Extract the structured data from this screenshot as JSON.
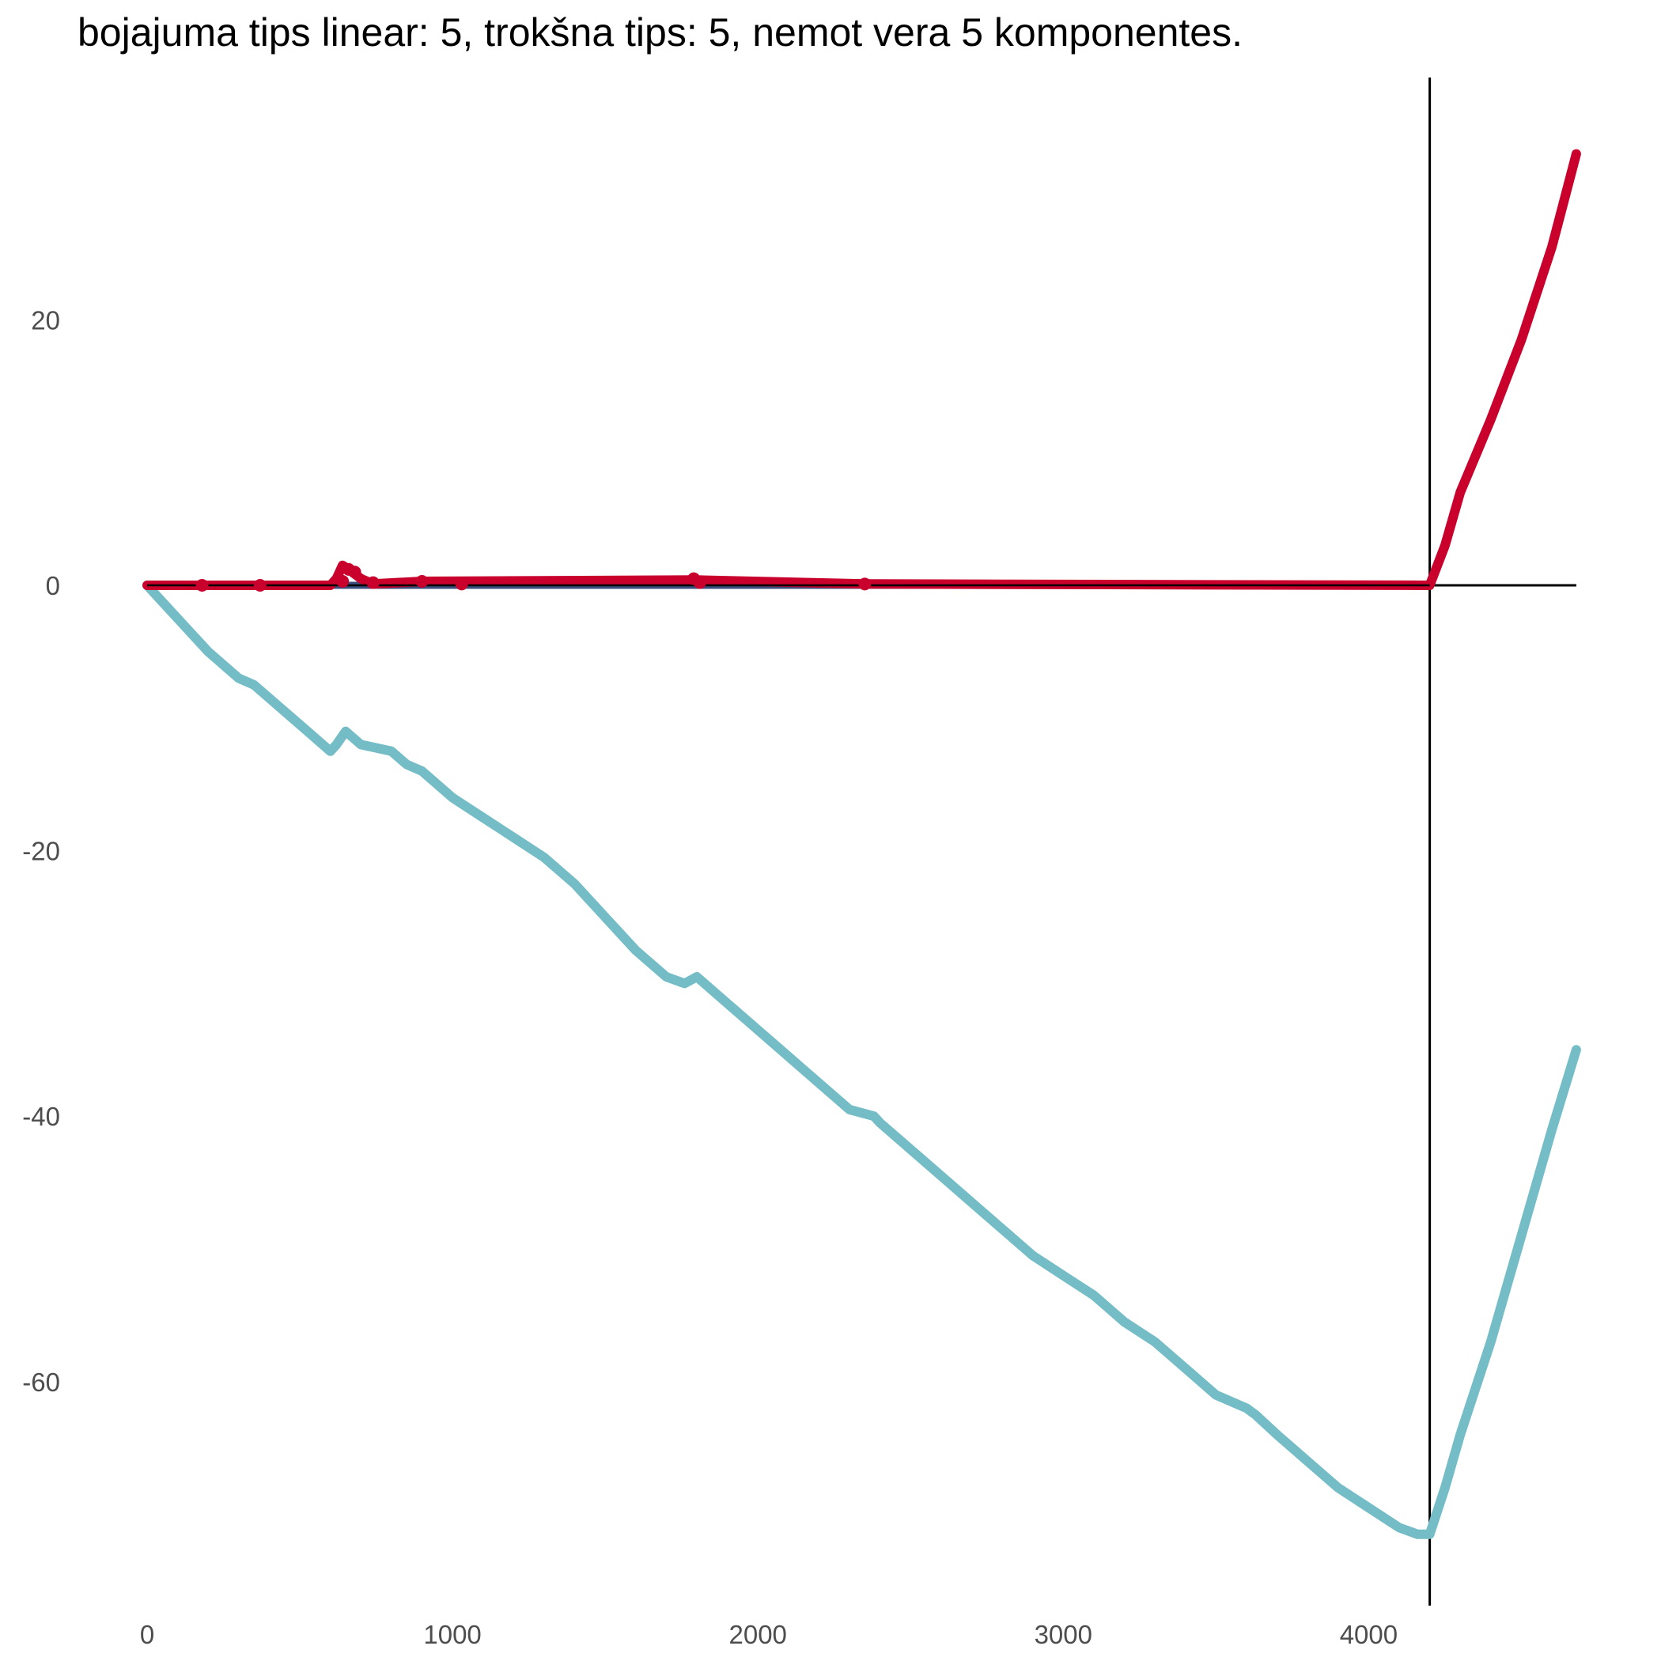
{
  "chart_data": {
    "type": "line",
    "title": "bojajuma tips linear: 5, trokšna tips: 5, nemot vera 5 komponentes.",
    "xlabel": "",
    "ylabel": "",
    "xlim": [
      0,
      4680
    ],
    "ylim": [
      -77,
      37
    ],
    "x_ticks": [
      0,
      1000,
      2000,
      3000,
      4000
    ],
    "y_ticks": [
      20,
      0,
      -20,
      -40,
      -60
    ],
    "x_tick_labels": [
      "0",
      "1000",
      "2000",
      "3000",
      "4000"
    ],
    "y_tick_labels": [
      "20",
      "0",
      "-20",
      "-40",
      "-60"
    ],
    "grid": false,
    "legend": "none",
    "reference_lines": {
      "vertical_x": 4200,
      "horizontal_y": 0
    },
    "series": [
      {
        "color": "#3b4f7f",
        "x": [
          0,
          4200
        ],
        "y": [
          0,
          0
        ]
      },
      {
        "color": "#74bcc6",
        "x": [
          0,
          100,
          200,
          300,
          350,
          400,
          500,
          600,
          620,
          650,
          700,
          800,
          850,
          900,
          1000,
          1100,
          1200,
          1300,
          1400,
          1500,
          1600,
          1700,
          1760,
          1800,
          1900,
          2000,
          2100,
          2200,
          2300,
          2380,
          2400,
          2500,
          2600,
          2700,
          2800,
          2900,
          3000,
          3100,
          3200,
          3300,
          3400,
          3500,
          3600,
          3630,
          3700,
          3800,
          3900,
          4000,
          4100,
          4160,
          4180,
          4200,
          4250,
          4300,
          4400,
          4500,
          4600,
          4680
        ],
        "y": [
          0,
          -2.5,
          -5,
          -7,
          -7.5,
          -8.5,
          -10.5,
          -12.5,
          -12,
          -11,
          -12,
          -12.5,
          -13.5,
          -14,
          -16,
          -17.5,
          -19,
          -20.5,
          -22.5,
          -25,
          -27.5,
          -29.5,
          -30,
          -29.5,
          -31.5,
          -33.5,
          -35.5,
          -37.5,
          -39.5,
          -40,
          -40.5,
          -42.5,
          -44.5,
          -46.5,
          -48.5,
          -50.5,
          -52,
          -53.5,
          -55.5,
          -57,
          -59,
          -61,
          -62,
          -62.5,
          -64,
          -66,
          -68,
          -69.5,
          -71,
          -71.5,
          -71.5,
          -71.5,
          -68,
          -64,
          -57,
          -49,
          -41,
          -35
        ]
      },
      {
        "color": "#c9002c",
        "x": [
          0,
          600,
          620,
          640,
          660,
          700,
          740,
          900,
          1800,
          2350,
          4200,
          4250,
          4300,
          4400,
          4500,
          4600,
          4680
        ],
        "y": [
          0,
          0,
          0.5,
          1.5,
          1.2,
          0.5,
          0.1,
          0.3,
          0.4,
          0.1,
          0,
          3,
          7,
          12.5,
          18.5,
          25.5,
          32.5
        ]
      }
    ],
    "markers": {
      "color": "#c9002c",
      "x": [
        180,
        370,
        640,
        660,
        680,
        740,
        900,
        1030,
        1790,
        1810,
        2350
      ],
      "y": [
        0,
        0,
        0.3,
        1.2,
        1.0,
        0.2,
        0.3,
        0.1,
        0.5,
        0.2,
        0.1
      ]
    }
  }
}
